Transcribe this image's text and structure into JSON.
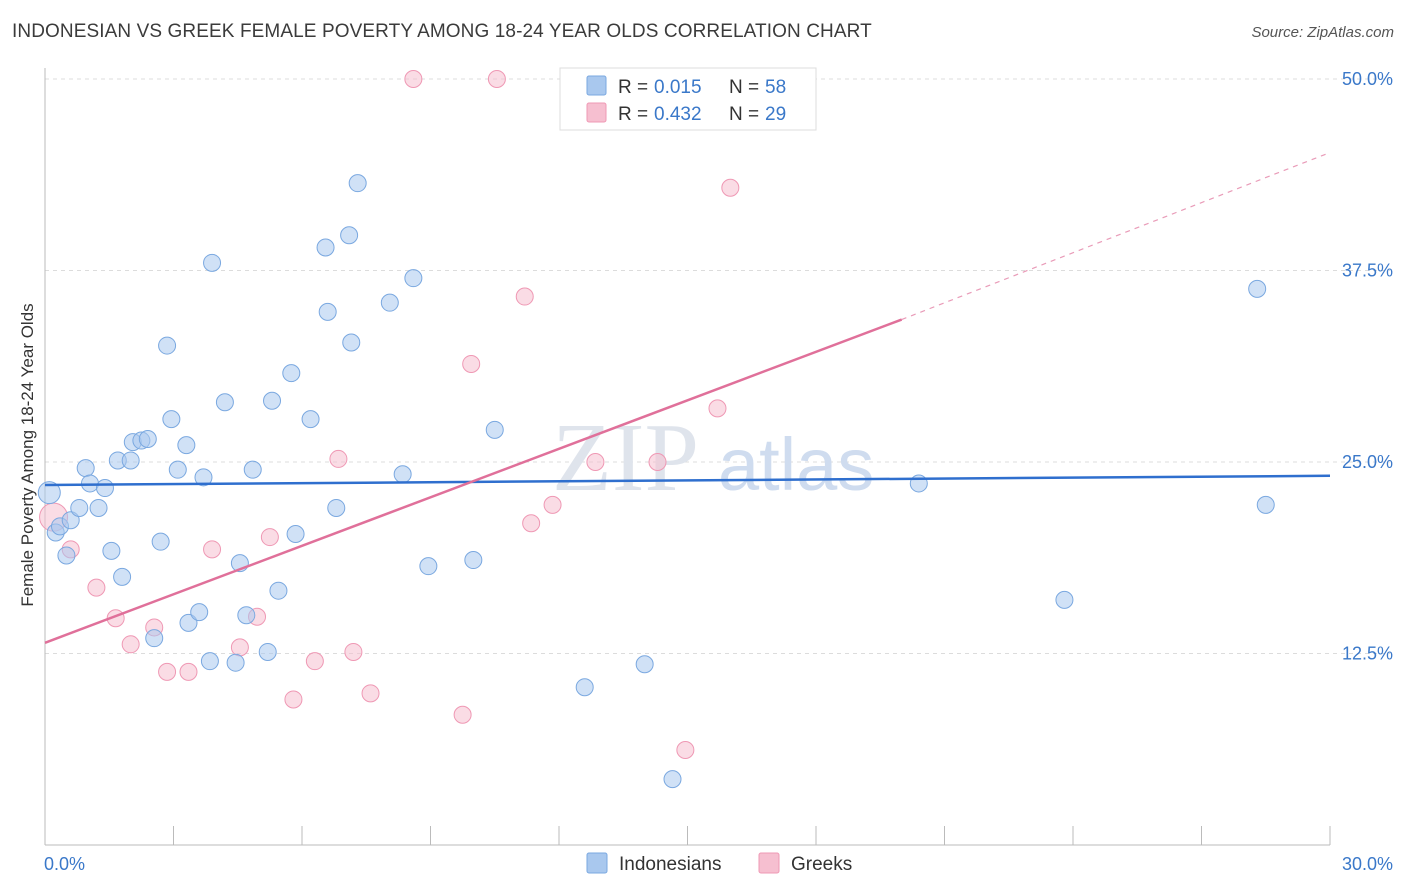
{
  "header": {
    "title": "INDONESIAN VS GREEK FEMALE POVERTY AMONG 18-24 YEAR OLDS CORRELATION CHART",
    "source": "Source: ZipAtlas.com"
  },
  "watermark": {
    "zip": "ZIP",
    "atlas": "atlas"
  },
  "colors": {
    "indonesians_fill": "#a9c8ee",
    "indonesians_stroke": "#7aa8e0",
    "indonesians_line": "#2f6fce",
    "greeks_fill": "#f6bfd0",
    "greeks_stroke": "#ef98b4",
    "greeks_line": "#e0709a",
    "tick_label": "#3a78c9"
  },
  "legend_top": [
    {
      "r_label": "R = ",
      "r_value": "0.015",
      "n_label": "N = ",
      "n_value": "58"
    },
    {
      "r_label": "R = ",
      "r_value": "0.432",
      "n_label": "N = ",
      "n_value": "29"
    }
  ],
  "chart_data": {
    "type": "scatter",
    "title": "INDONESIAN VS GREEK FEMALE POVERTY AMONG 18-24 YEAR OLDS CORRELATION CHART",
    "xlabel": "",
    "ylabel": "Female Poverty Among 18-24 Year Olds",
    "xlim": [
      0,
      30
    ],
    "ylim": [
      0,
      50
    ],
    "x_tick_labels": [
      "0.0%",
      "30.0%"
    ],
    "y_tick_labels": [
      "12.5%",
      "25.0%",
      "37.5%",
      "50.0%"
    ],
    "y_ticks": [
      12.5,
      25.0,
      37.5,
      50.0
    ],
    "grid": true,
    "legend": "top-center and bottom-center",
    "series": [
      {
        "name": "Indonesians",
        "r": 0.015,
        "n": 58,
        "trend": {
          "x0": 0,
          "y0": 23.5,
          "x1": 30,
          "y1": 24.1
        },
        "points": [
          [
            0.1,
            23.0
          ],
          [
            0.25,
            20.4
          ],
          [
            0.35,
            20.8
          ],
          [
            0.5,
            18.9
          ],
          [
            0.6,
            21.2
          ],
          [
            0.8,
            22.0
          ],
          [
            0.95,
            24.6
          ],
          [
            1.05,
            23.6
          ],
          [
            1.25,
            22.0
          ],
          [
            1.4,
            23.3
          ],
          [
            1.55,
            19.2
          ],
          [
            1.7,
            25.1
          ],
          [
            1.8,
            17.5
          ],
          [
            2.0,
            25.1
          ],
          [
            2.05,
            26.3
          ],
          [
            2.25,
            26.4
          ],
          [
            2.4,
            26.5
          ],
          [
            2.55,
            13.5
          ],
          [
            2.7,
            19.8
          ],
          [
            2.85,
            32.6
          ],
          [
            2.95,
            27.8
          ],
          [
            3.1,
            24.5
          ],
          [
            3.3,
            26.1
          ],
          [
            3.35,
            14.5
          ],
          [
            3.6,
            15.2
          ],
          [
            3.7,
            24.0
          ],
          [
            3.85,
            12.0
          ],
          [
            3.9,
            38.0
          ],
          [
            4.2,
            28.9
          ],
          [
            4.45,
            11.9
          ],
          [
            4.55,
            18.4
          ],
          [
            4.7,
            15.0
          ],
          [
            4.85,
            24.5
          ],
          [
            5.2,
            12.6
          ],
          [
            5.3,
            29.0
          ],
          [
            5.45,
            16.6
          ],
          [
            5.75,
            30.8
          ],
          [
            5.85,
            20.3
          ],
          [
            6.2,
            27.8
          ],
          [
            6.55,
            39.0
          ],
          [
            6.6,
            34.8
          ],
          [
            6.8,
            22.0
          ],
          [
            7.1,
            39.8
          ],
          [
            7.15,
            32.8
          ],
          [
            7.3,
            43.2
          ],
          [
            8.05,
            35.4
          ],
          [
            8.35,
            24.2
          ],
          [
            8.6,
            37.0
          ],
          [
            8.95,
            18.2
          ],
          [
            10.0,
            18.6
          ],
          [
            10.5,
            27.1
          ],
          [
            12.6,
            10.3
          ],
          [
            14.0,
            11.8
          ],
          [
            14.65,
            4.3
          ],
          [
            20.4,
            23.6
          ],
          [
            23.8,
            16.0
          ],
          [
            28.3,
            36.3
          ],
          [
            28.5,
            22.2
          ]
        ]
      },
      {
        "name": "Greeks",
        "r": 0.432,
        "n": 29,
        "trend": {
          "x0": 0,
          "y0": 13.2,
          "x1": 20.0,
          "y1": 34.3,
          "dash_x1": 30,
          "dash_y1": 45.2
        },
        "points": [
          [
            0.2,
            21.4
          ],
          [
            0.6,
            19.3
          ],
          [
            1.2,
            16.8
          ],
          [
            1.65,
            14.8
          ],
          [
            2.0,
            13.1
          ],
          [
            2.55,
            14.2
          ],
          [
            2.85,
            11.3
          ],
          [
            3.35,
            11.3
          ],
          [
            3.9,
            19.3
          ],
          [
            4.55,
            12.9
          ],
          [
            4.95,
            14.9
          ],
          [
            5.25,
            20.1
          ],
          [
            5.8,
            9.5
          ],
          [
            6.3,
            12.0
          ],
          [
            6.85,
            25.2
          ],
          [
            7.2,
            12.6
          ],
          [
            7.6,
            9.9
          ],
          [
            8.6,
            50.0
          ],
          [
            9.75,
            8.5
          ],
          [
            9.95,
            31.4
          ],
          [
            10.55,
            50.0
          ],
          [
            11.2,
            35.8
          ],
          [
            11.35,
            21.0
          ],
          [
            11.85,
            22.2
          ],
          [
            12.85,
            25.0
          ],
          [
            14.3,
            25.0
          ],
          [
            14.95,
            6.2
          ],
          [
            15.7,
            28.5
          ],
          [
            16.0,
            42.9
          ]
        ]
      }
    ]
  }
}
